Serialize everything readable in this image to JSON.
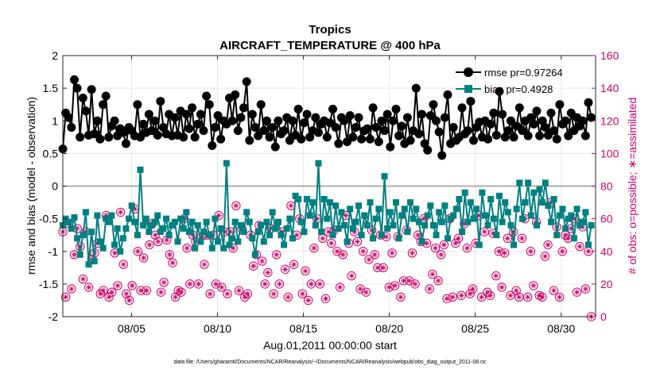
{
  "chart_data": {
    "type": "line",
    "title": "Tropics",
    "subtitle": "AIRCRAFT_TEMPERATURE @ 400 hPa",
    "xlabel": "Aug.01,2011 00:00:00 start",
    "ylabel_left": "rmse and bias (model - observation)",
    "ylabel_right": "# of obs: o=possible; ∗=assimilated",
    "footnote": "data file: /Users/gharamti/Documents/NCAR/Reanalysis/~/Documents/NCAR/Reanalysis/webpub/obs_diag_output_2011-08.nc",
    "x_range_days": [
      1,
      32
    ],
    "x_ticks": [
      5,
      10,
      15,
      20,
      25,
      30
    ],
    "x_tick_labels": [
      "08/05",
      "08/10",
      "08/15",
      "08/20",
      "08/25",
      "08/30"
    ],
    "ylim_left": [
      -2,
      2
    ],
    "y_ticks_left": [
      -2,
      -1.5,
      -1,
      -0.5,
      0,
      0.5,
      1,
      1.5,
      2
    ],
    "y_tick_labels_left": [
      "-2",
      "-1.5",
      "-1",
      "-0.5",
      "0",
      "0.5",
      "1",
      "1.5",
      "2"
    ],
    "ylim_right": [
      0,
      160
    ],
    "y_ticks_right": [
      0,
      20,
      40,
      60,
      80,
      100,
      120,
      140,
      160
    ],
    "y_tick_labels_right": [
      "0",
      "20",
      "40",
      "60",
      "80",
      "100",
      "120",
      "140",
      "160"
    ],
    "legend_position": "top-right",
    "grid": true,
    "colors": {
      "rmse": "#000000",
      "bias": "#008080",
      "obs": "#cc0066",
      "zero_line": "#999999"
    },
    "series": [
      {
        "name": "rmse",
        "label": "rmse pr=0.97264",
        "values": [
          0.57,
          1.12,
          1.05,
          0.9,
          1.63,
          1.5,
          0.75,
          1.35,
          1.15,
          0.78,
          1.48,
          0.8,
          1.0,
          0.72,
          1.25,
          1.38,
          0.75,
          0.92,
          1.0,
          0.77,
          0.88,
          0.82,
          0.65,
          0.9,
          0.85,
          0.77,
          1.25,
          0.75,
          0.95,
          0.82,
          1.1,
          0.85,
          1.0,
          0.78,
          1.3,
          0.9,
          0.8,
          1.1,
          0.77,
          1.05,
          0.78,
          1.15,
          0.75,
          1.1,
          0.88,
          1.2,
          0.75,
          0.95,
          1.1,
          0.85,
          1.38,
          1.25,
          0.62,
          0.9,
          1.08,
          0.72,
          1.0,
          0.95,
          1.35,
          1.0,
          1.4,
          0.85,
          1.05,
          1.2,
          1.6,
          0.7,
          1.1,
          0.9,
          0.77,
          1.25,
          0.85,
          1.0,
          0.75,
          0.9,
          0.6,
          1.0,
          0.8,
          0.85,
          1.05,
          0.7,
          1.0,
          0.78,
          1.18,
          0.72,
          0.97,
          1.1,
          0.75,
          0.85,
          1.05,
          0.82,
          0.95,
          1.0,
          0.75,
          0.97,
          1.18,
          0.9,
          0.65,
          1.05,
          1.0,
          0.68,
          1.08,
          0.75,
          0.9,
          1.05,
          0.72,
          0.85,
          0.88,
          0.72,
          1.2,
          0.9,
          0.68,
          1.0,
          0.85,
          1.1,
          0.6,
          1.0,
          1.18,
          0.77,
          0.92,
          0.65,
          1.05,
          0.7,
          0.85,
          1.5,
          0.8,
          1.1,
          0.65,
          0.55,
          1.08,
          1.25,
          1.0,
          0.83,
          0.47,
          1.05,
          1.4,
          0.65,
          0.9,
          0.7,
          0.75,
          1.2,
          0.8,
          0.85,
          1.3,
          0.7,
          0.9,
          0.98,
          0.75,
          1.0,
          0.72,
          0.95,
          1.12,
          0.78,
          1.45,
          1.1,
          0.75,
          0.85,
          1.0,
          0.75,
          0.92,
          1.2,
          0.85,
          1.0,
          0.77,
          1.05,
          0.95,
          1.15,
          0.77,
          1.0,
          0.9,
          0.78,
          1.12,
          0.85,
          0.72,
          1.25,
          0.95,
          1.0,
          0.77,
          1.12,
          0.85,
          1.05,
          0.92,
          1.0,
          0.77,
          1.28,
          1.05
        ],
        "note": "cadence 6h starting at x=1.0"
      },
      {
        "name": "bias",
        "label": "bias pr=0.4928",
        "values": [
          -0.6,
          -0.5,
          -0.55,
          -0.65,
          -0.48,
          -0.8,
          -1.05,
          -0.75,
          -0.4,
          -1.2,
          -0.7,
          -1.15,
          -0.45,
          -0.85,
          -0.95,
          -0.5,
          -0.55,
          -0.45,
          -0.9,
          -0.65,
          -1.0,
          -0.8,
          -0.65,
          -0.5,
          -0.3,
          -0.55,
          -0.75,
          0.25,
          -0.6,
          -0.5,
          -0.7,
          -0.6,
          -0.55,
          -0.45,
          -0.7,
          -0.65,
          -0.5,
          -0.75,
          -0.6,
          -0.55,
          -0.85,
          -0.5,
          -0.65,
          -0.4,
          -0.7,
          -0.55,
          -0.95,
          -0.6,
          -0.85,
          -0.7,
          -0.55,
          -0.75,
          -0.95,
          -0.5,
          -0.85,
          -0.65,
          -0.95,
          0.35,
          -0.9,
          -0.8,
          -0.55,
          -0.85,
          -0.6,
          -0.7,
          -0.4,
          -0.55,
          -0.8,
          -1.05,
          -0.7,
          -0.6,
          -0.85,
          -0.55,
          -0.75,
          -0.4,
          -0.65,
          -0.55,
          -0.75,
          -0.9,
          -0.65,
          -0.5,
          -0.8,
          -0.15,
          -0.2,
          -0.55,
          -0.7,
          -0.2,
          -0.45,
          -0.25,
          -0.6,
          0.35,
          -0.7,
          -0.2,
          -0.5,
          -0.25,
          -0.75,
          -0.3,
          -0.65,
          -0.4,
          -0.6,
          -0.85,
          -0.35,
          -0.65,
          -0.55,
          -0.3,
          -0.75,
          -0.45,
          -0.6,
          -0.25,
          -0.8,
          -0.5,
          -0.35,
          -0.75,
          0.15,
          -0.65,
          -0.4,
          -0.6,
          -0.25,
          -0.8,
          -0.45,
          -0.35,
          -0.7,
          -0.25,
          -0.5,
          -0.35,
          -0.55,
          -0.85,
          -0.6,
          -0.45,
          -0.3,
          -0.6,
          -0.75,
          -0.4,
          -0.55,
          -0.3,
          -0.8,
          -0.5,
          -0.45,
          -0.35,
          -0.2,
          -0.7,
          -0.1,
          -0.55,
          -0.25,
          -0.5,
          -0.35,
          -0.9,
          -0.1,
          -0.45,
          -0.6,
          -0.2,
          -0.5,
          -0.75,
          -0.15,
          -0.55,
          -0.25,
          -0.4,
          -0.6,
          -0.9,
          -0.35,
          0.05,
          -0.5,
          -0.25,
          0.05,
          -0.45,
          -0.1,
          -0.6,
          -0.05,
          -0.25,
          0.05,
          -0.3,
          -0.55,
          -0.2,
          -0.75,
          -0.45,
          -0.35,
          -0.65,
          -0.5,
          -0.45,
          -0.8,
          -0.35,
          -0.6,
          -0.55,
          -0.4,
          -0.9,
          -0.6
        ],
        "note": "cadence 6h starting at x=1.0"
      },
      {
        "name": "obs_possible",
        "axis": "right",
        "marker": "circle",
        "values": [
          52,
          12,
          57,
          17,
          38,
          54,
          43,
          23,
          52,
          18,
          35,
          39,
          45,
          14,
          16,
          62,
          12,
          15,
          39,
          19,
          64,
          32,
          14,
          10,
          19,
          66,
          40,
          16,
          36,
          16,
          44,
          57,
          50,
          46,
          15,
          21,
          47,
          38,
          33,
          12,
          16,
          15,
          60,
          42,
          20,
          50,
          46,
          20,
          49,
          32,
          50,
          14,
          50,
          20,
          62,
          18,
          52,
          14,
          52,
          42,
          68,
          16,
          54,
          12,
          14,
          50,
          31,
          38,
          56,
          34,
          20,
          27,
          54,
          14,
          38,
          20,
          52,
          29,
          12,
          68,
          32,
          50,
          60,
          14,
          28,
          10,
          20,
          42,
          60,
          20,
          48,
          11,
          52,
          45,
          53,
          40,
          18,
          38,
          62,
          45,
          25,
          52,
          46,
          17,
          40,
          15,
          35,
          53,
          38,
          30,
          50,
          30,
          49,
          18,
          39,
          19,
          49,
          12,
          22,
          53,
          22,
          39,
          20,
          50,
          46,
          60,
          45,
          17,
          26,
          42,
          22,
          38,
          44,
          11,
          60,
          12,
          45,
          48,
          13,
          57,
          42,
          14,
          17,
          45,
          62,
          12,
          52,
          15,
          13,
          51,
          25,
          40,
          18,
          39,
          48,
          13,
          52,
          16,
          12,
          48,
          60,
          12,
          40,
          19,
          58,
          13,
          12,
          37,
          44,
          70,
          16,
          55,
          12,
          40,
          50,
          48,
          54,
          60,
          15,
          43,
          55,
          17,
          40,
          0
        ],
        "note": "number of obs possible, 6h cadence"
      }
    ],
    "assimilated_note": "assimilated counts equal possible counts (markers overlap)"
  }
}
